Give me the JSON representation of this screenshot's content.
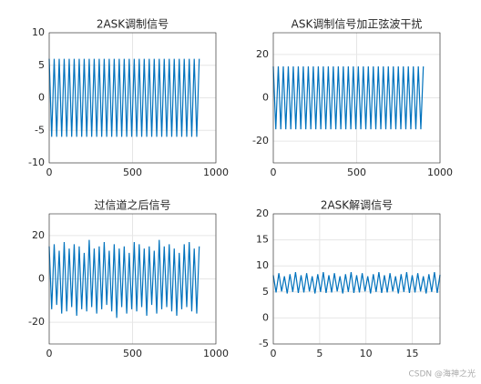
{
  "chart_data": [
    {
      "type": "line",
      "title": "2ASK调制信号",
      "color": "#0072bd",
      "grid": true,
      "xlim": [
        0,
        1000
      ],
      "xticks": [
        0,
        500,
        1000
      ],
      "ylim": [
        -10,
        10
      ],
      "yticks": [
        -10,
        -5,
        0,
        5,
        10
      ],
      "x": [
        0,
        15,
        30,
        45,
        60,
        75,
        90,
        105,
        120,
        135,
        150,
        165,
        180,
        195,
        210,
        225,
        240,
        255,
        270,
        285,
        300,
        315,
        330,
        345,
        360,
        375,
        390,
        405,
        420,
        435,
        450,
        465,
        480,
        495,
        510,
        525,
        540,
        555,
        570,
        585,
        600,
        615,
        630,
        645,
        660,
        675,
        690,
        705,
        720,
        735,
        750,
        765,
        780,
        795,
        810,
        825,
        840,
        855,
        870,
        885,
        900
      ],
      "values": [
        6,
        -6,
        6,
        -6,
        6,
        -6,
        6,
        -6,
        6,
        -6,
        6,
        -6,
        6,
        -6,
        6,
        -6,
        6,
        -6,
        6,
        -6,
        6,
        -6,
        6,
        -6,
        6,
        -6,
        6,
        -6,
        6,
        -6,
        6,
        -6,
        6,
        -6,
        6,
        -6,
        6,
        -6,
        6,
        -6,
        6,
        -6,
        6,
        -6,
        6,
        -6,
        6,
        -6,
        6,
        -6,
        6,
        -6,
        6,
        -6,
        6,
        -6,
        6,
        -6,
        6,
        -6,
        6
      ]
    },
    {
      "type": "line",
      "title": "ASK调制信号加正弦波干扰",
      "color": "#0072bd",
      "grid": true,
      "xlim": [
        0,
        1000
      ],
      "xticks": [
        0,
        500,
        1000
      ],
      "ylim": [
        -30,
        30
      ],
      "yticks": [
        -20,
        0,
        20
      ],
      "x": [
        0,
        15,
        30,
        45,
        60,
        75,
        90,
        105,
        120,
        135,
        150,
        165,
        180,
        195,
        210,
        225,
        240,
        255,
        270,
        285,
        300,
        315,
        330,
        345,
        360,
        375,
        390,
        405,
        420,
        435,
        450,
        465,
        480,
        495,
        510,
        525,
        540,
        555,
        570,
        585,
        600,
        615,
        630,
        645,
        660,
        675,
        690,
        705,
        720,
        735,
        750,
        765,
        780,
        795,
        810,
        825,
        840,
        855,
        870,
        885,
        900
      ],
      "values": [
        14.5,
        -14.5,
        14.5,
        -14.5,
        14.5,
        -14.5,
        14.5,
        -14.5,
        14.5,
        -14.5,
        14.5,
        -14.5,
        14.5,
        -14.5,
        14.5,
        -14.5,
        14.5,
        -14.5,
        14.5,
        -14.5,
        14.5,
        -14.5,
        14.5,
        -14.5,
        14.5,
        -14.5,
        14.5,
        -14.5,
        14.5,
        -14.5,
        14.5,
        -14.5,
        14.5,
        -14.5,
        14.5,
        -14.5,
        14.5,
        -14.5,
        14.5,
        -14.5,
        14.5,
        -14.5,
        14.5,
        -14.5,
        14.5,
        -14.5,
        14.5,
        -14.5,
        14.5,
        -14.5,
        14.5,
        -14.5,
        14.5,
        -14.5,
        14.5,
        -14.5,
        14.5,
        -14.5,
        14.5,
        -14.5,
        14.5
      ]
    },
    {
      "type": "line",
      "title": "过信道之后信号",
      "color": "#0072bd",
      "grid": true,
      "xlim": [
        0,
        1000
      ],
      "xticks": [
        0,
        500,
        1000
      ],
      "ylim": [
        -30,
        30
      ],
      "yticks": [
        -20,
        0,
        20
      ],
      "x": [
        0,
        15,
        30,
        45,
        60,
        75,
        90,
        105,
        120,
        135,
        150,
        165,
        180,
        195,
        210,
        225,
        240,
        255,
        270,
        285,
        300,
        315,
        330,
        345,
        360,
        375,
        390,
        405,
        420,
        435,
        450,
        465,
        480,
        495,
        510,
        525,
        540,
        555,
        570,
        585,
        600,
        615,
        630,
        645,
        660,
        675,
        690,
        705,
        720,
        735,
        750,
        765,
        780,
        795,
        810,
        825,
        840,
        855,
        870,
        885,
        900
      ],
      "values": [
        15,
        -14,
        16,
        -12,
        13,
        -16,
        17,
        -15,
        14,
        -13,
        16,
        -17,
        15,
        -14,
        12,
        -15,
        18,
        -13,
        14,
        -16,
        15,
        -14,
        17,
        -12,
        13,
        -15,
        16,
        -18,
        14,
        -13,
        15,
        -16,
        12,
        -14,
        17,
        -15,
        16,
        -13,
        14,
        -17,
        15,
        -12,
        13,
        -16,
        18,
        -14,
        15,
        -13,
        16,
        -15,
        14,
        -17,
        12,
        -14,
        16,
        -13,
        17,
        -15,
        14,
        -16,
        15
      ]
    },
    {
      "type": "line",
      "title": "2ASK解调信号",
      "color": "#0072bd",
      "grid": true,
      "xlim": [
        0,
        18
      ],
      "xticks": [
        0,
        5,
        10,
        15
      ],
      "ylim": [
        -5,
        20
      ],
      "yticks": [
        -5,
        0,
        5,
        10,
        15,
        20
      ],
      "x": [
        0,
        0.3,
        0.6,
        0.9,
        1.2,
        1.5,
        1.8,
        2.1,
        2.4,
        2.7,
        3,
        3.3,
        3.6,
        3.9,
        4.2,
        4.5,
        4.8,
        5.1,
        5.4,
        5.7,
        6,
        6.3,
        6.6,
        6.9,
        7.2,
        7.5,
        7.8,
        8.1,
        8.4,
        8.7,
        9,
        9.3,
        9.6,
        9.9,
        10.2,
        10.5,
        10.8,
        11.1,
        11.4,
        11.7,
        12,
        12.3,
        12.6,
        12.9,
        13.2,
        13.5,
        13.8,
        14.1,
        14.4,
        14.7,
        15,
        15.3,
        15.6,
        15.9,
        16.2,
        16.5,
        16.8,
        17.1,
        17.4,
        17.7,
        18
      ],
      "values": [
        8.2,
        4.9,
        8.6,
        5.1,
        8.0,
        4.7,
        8.4,
        5.0,
        8.8,
        4.8,
        8.2,
        4.9,
        8.6,
        5.1,
        8.0,
        4.7,
        8.4,
        5.0,
        8.8,
        4.8,
        8.2,
        4.9,
        8.6,
        5.1,
        8.0,
        4.7,
        8.4,
        5.0,
        8.8,
        4.8,
        8.2,
        4.9,
        8.6,
        5.1,
        8.0,
        4.7,
        8.4,
        5.0,
        8.8,
        4.8,
        8.2,
        4.9,
        8.6,
        5.1,
        8.0,
        4.7,
        8.4,
        5.0,
        8.8,
        4.8,
        8.2,
        4.9,
        8.6,
        5.1,
        8.0,
        4.7,
        8.4,
        5.0,
        8.8,
        4.8,
        8.3
      ]
    }
  ],
  "watermark": "CSDN @海神之光"
}
